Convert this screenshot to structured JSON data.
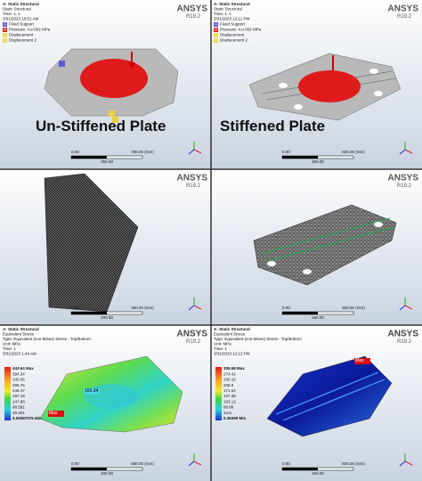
{
  "panels": [
    {
      "header": [
        "A: Static Structural",
        "Static Structural",
        "Time: 1. s",
        "3/31/2023 10:51 AM"
      ],
      "legend": [
        {
          "key": "A",
          "label": "Fixed Support"
        },
        {
          "key": "B",
          "label": "Pressure: 4.e-002 MPa"
        },
        {
          "key": "C",
          "label": "Displacement"
        },
        {
          "key": "D",
          "label": "Displacement 2"
        }
      ],
      "logo": "ANSYS",
      "version": "R19.2",
      "scale": {
        "start": "0.00",
        "end": "700.00 (mm)",
        "mid": "350.00"
      },
      "caption": "Un-Stiffened Plate"
    },
    {
      "header": [
        "A: Static Structural",
        "Static Structural",
        "Time: 1. s",
        "3/31/2023 12:11 PM"
      ],
      "legend": [
        {
          "key": "A",
          "label": "Fixed Support"
        },
        {
          "key": "B",
          "label": "Pressure: 4.e-002 MPa"
        },
        {
          "key": "C",
          "label": "Displacement"
        },
        {
          "key": "D",
          "label": "Displacement 2"
        }
      ],
      "logo": "ANSYS",
      "version": "R19.2",
      "scale": {
        "start": "0.00",
        "end": "600.00 (mm)",
        "mid": "300.00"
      },
      "caption": "Stiffened Plate"
    },
    {
      "logo": "ANSYS",
      "version": "R19.2",
      "scale": {
        "start": "0.00",
        "end": "400.00 (mm)",
        "mid": "200.00"
      }
    },
    {
      "logo": "ANSYS",
      "version": "R19.2",
      "scale": {
        "start": "0.00",
        "end": "500.00 (mm)",
        "mid": "250.00"
      }
    },
    {
      "header": [
        "A: Static Structural",
        "Equivalent Stress",
        "Type: Equivalent (von-Mises) Stress - Top/Bottom",
        "Unit: MPa",
        "Time: 1",
        "3/31/2023 1:44 AM"
      ],
      "contour": [
        "443.64 Max",
        "394.34",
        "345.05",
        "295.76",
        "246.47",
        "197.18",
        "147.88",
        "98.591",
        "49.301",
        "0.00087075 Min"
      ],
      "markers": [
        "Max",
        "166.34"
      ],
      "logo": "ANSYS",
      "version": "R19.2",
      "scale": {
        "start": "0.00",
        "end": "800.00 (mm)",
        "mid": "400.00"
      }
    },
    {
      "header": [
        "A: Static Structural",
        "Equivalent Stress",
        "Type: Equivalent (von-Mises) Stress - Top/Bottom",
        "Unit: MPa",
        "Time: 1",
        "3/31/2023 12:13 PM"
      ],
      "contour": [
        "308.68 Max",
        "274.42",
        "240.16",
        "205.9",
        "171.64",
        "137.38",
        "103.12",
        "68.86",
        "34.6",
        "0.35399 Min"
      ],
      "markers": [
        "Max"
      ],
      "logo": "ANSYS",
      "version": "R19.2",
      "scale": {
        "start": "0.00",
        "end": "600.00 (mm)",
        "mid": "300.00"
      }
    }
  ]
}
